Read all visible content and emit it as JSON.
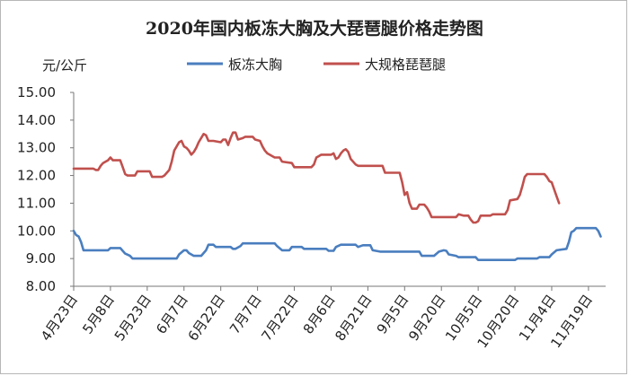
{
  "chart_data": {
    "type": "line",
    "title": "2020年国内板冻大胸及大琵琶腿价格走势图",
    "ylabel": "元/公斤",
    "xlabel": "",
    "ylim": [
      8.0,
      15.0
    ],
    "y_ticks": [
      "8.00",
      "9.00",
      "10.00",
      "11.00",
      "12.00",
      "13.00",
      "14.00",
      "15.00"
    ],
    "x_tick_labels": [
      "4月23日",
      "5月8日",
      "5月23日",
      "6月7日",
      "6月22日",
      "7月7日",
      "7月22日",
      "8月6日",
      "8月21日",
      "9月5日",
      "9月20日",
      "10月5日",
      "10月20日",
      "11月4日",
      "11月19日"
    ],
    "x_tick_days": [
      0,
      15,
      30,
      45,
      60,
      75,
      90,
      105,
      120,
      135,
      150,
      165,
      180,
      195,
      210
    ],
    "legend_position": "top",
    "grid": false,
    "series": [
      {
        "name": "板冻大胸",
        "color": "#4a7ebf",
        "points": [
          [
            0,
            10.0
          ],
          [
            1,
            9.85
          ],
          [
            2,
            9.8
          ],
          [
            3,
            9.6
          ],
          [
            4,
            9.3
          ],
          [
            8,
            9.3
          ],
          [
            14,
            9.3
          ],
          [
            15,
            9.38
          ],
          [
            19,
            9.38
          ],
          [
            21,
            9.18
          ],
          [
            23,
            9.1
          ],
          [
            24,
            9.0
          ],
          [
            30,
            9.0
          ],
          [
            35,
            9.0
          ],
          [
            42,
            9.0
          ],
          [
            43,
            9.15
          ],
          [
            45,
            9.3
          ],
          [
            46,
            9.3
          ],
          [
            47,
            9.2
          ],
          [
            49,
            9.1
          ],
          [
            52,
            9.1
          ],
          [
            54,
            9.3
          ],
          [
            55,
            9.5
          ],
          [
            57,
            9.5
          ],
          [
            58,
            9.42
          ],
          [
            64,
            9.42
          ],
          [
            65,
            9.35
          ],
          [
            66,
            9.35
          ],
          [
            68,
            9.45
          ],
          [
            69,
            9.55
          ],
          [
            78,
            9.55
          ],
          [
            82,
            9.55
          ],
          [
            83,
            9.45
          ],
          [
            85,
            9.3
          ],
          [
            88,
            9.3
          ],
          [
            89,
            9.42
          ],
          [
            93,
            9.42
          ],
          [
            94,
            9.35
          ],
          [
            103,
            9.35
          ],
          [
            104,
            9.28
          ],
          [
            106,
            9.28
          ],
          [
            107,
            9.42
          ],
          [
            109,
            9.5
          ],
          [
            115,
            9.5
          ],
          [
            116,
            9.42
          ],
          [
            118,
            9.48
          ],
          [
            121,
            9.48
          ],
          [
            122,
            9.3
          ],
          [
            125,
            9.25
          ],
          [
            141,
            9.25
          ],
          [
            142,
            9.1
          ],
          [
            147,
            9.1
          ],
          [
            149,
            9.25
          ],
          [
            151,
            9.3
          ],
          [
            152,
            9.28
          ],
          [
            153,
            9.15
          ],
          [
            156,
            9.1
          ],
          [
            157,
            9.05
          ],
          [
            158,
            9.05
          ],
          [
            164,
            9.05
          ],
          [
            165,
            8.95
          ],
          [
            172,
            8.95
          ],
          [
            180,
            8.95
          ],
          [
            181,
            9.0
          ],
          [
            185,
            9.0
          ],
          [
            189,
            9.0
          ],
          [
            190,
            9.05
          ],
          [
            194,
            9.05
          ],
          [
            195,
            9.15
          ],
          [
            197,
            9.3
          ],
          [
            201,
            9.35
          ],
          [
            202,
            9.6
          ],
          [
            203,
            9.95
          ],
          [
            204,
            10.0
          ],
          [
            205,
            10.1
          ],
          [
            209,
            10.1
          ],
          [
            213,
            10.1
          ],
          [
            214,
            10.0
          ],
          [
            215,
            9.8
          ]
        ]
      },
      {
        "name": "大规格琵琶腿",
        "color": "#c0504d",
        "points": [
          [
            0,
            12.25
          ],
          [
            8,
            12.25
          ],
          [
            9,
            12.2
          ],
          [
            10,
            12.2
          ],
          [
            11,
            12.35
          ],
          [
            12,
            12.45
          ],
          [
            13,
            12.5
          ],
          [
            14,
            12.55
          ],
          [
            15,
            12.65
          ],
          [
            16,
            12.55
          ],
          [
            19,
            12.55
          ],
          [
            20,
            12.3
          ],
          [
            21,
            12.05
          ],
          [
            22,
            12.0
          ],
          [
            25,
            12.0
          ],
          [
            26,
            12.15
          ],
          [
            31,
            12.15
          ],
          [
            32,
            11.95
          ],
          [
            36,
            11.95
          ],
          [
            37,
            12.0
          ],
          [
            39,
            12.2
          ],
          [
            40,
            12.5
          ],
          [
            41,
            12.9
          ],
          [
            43,
            13.2
          ],
          [
            44,
            13.25
          ],
          [
            45,
            13.05
          ],
          [
            46,
            13.0
          ],
          [
            47,
            12.9
          ],
          [
            48,
            12.75
          ],
          [
            49,
            12.85
          ],
          [
            50,
            13.0
          ],
          [
            51,
            13.2
          ],
          [
            53,
            13.5
          ],
          [
            54,
            13.45
          ],
          [
            55,
            13.25
          ],
          [
            57,
            13.25
          ],
          [
            60,
            13.2
          ],
          [
            61,
            13.3
          ],
          [
            62,
            13.3
          ],
          [
            63,
            13.1
          ],
          [
            64,
            13.35
          ],
          [
            65,
            13.55
          ],
          [
            66,
            13.55
          ],
          [
            67,
            13.3
          ],
          [
            69,
            13.35
          ],
          [
            70,
            13.4
          ],
          [
            73,
            13.4
          ],
          [
            74,
            13.3
          ],
          [
            76,
            13.25
          ],
          [
            77,
            13.05
          ],
          [
            78,
            12.9
          ],
          [
            79,
            12.8
          ],
          [
            81,
            12.7
          ],
          [
            82,
            12.65
          ],
          [
            84,
            12.65
          ],
          [
            85,
            12.5
          ],
          [
            89,
            12.45
          ],
          [
            90,
            12.3
          ],
          [
            97,
            12.3
          ],
          [
            98,
            12.4
          ],
          [
            99,
            12.65
          ],
          [
            100,
            12.7
          ],
          [
            101,
            12.75
          ],
          [
            105,
            12.75
          ],
          [
            106,
            12.8
          ],
          [
            107,
            12.6
          ],
          [
            108,
            12.65
          ],
          [
            109,
            12.8
          ],
          [
            110,
            12.9
          ],
          [
            111,
            12.95
          ],
          [
            112,
            12.85
          ],
          [
            113,
            12.6
          ],
          [
            115,
            12.4
          ],
          [
            116,
            12.35
          ],
          [
            126,
            12.35
          ],
          [
            127,
            12.1
          ],
          [
            133,
            12.1
          ],
          [
            134,
            11.75
          ],
          [
            135,
            11.3
          ],
          [
            136,
            11.4
          ],
          [
            137,
            11.0
          ],
          [
            138,
            10.8
          ],
          [
            140,
            10.8
          ],
          [
            141,
            10.95
          ],
          [
            143,
            10.95
          ],
          [
            144,
            10.85
          ],
          [
            145,
            10.7
          ],
          [
            146,
            10.5
          ],
          [
            156,
            10.5
          ],
          [
            157,
            10.6
          ],
          [
            159,
            10.55
          ],
          [
            161,
            10.55
          ],
          [
            162,
            10.4
          ],
          [
            163,
            10.3
          ],
          [
            164,
            10.3
          ],
          [
            165,
            10.35
          ],
          [
            166,
            10.55
          ],
          [
            170,
            10.55
          ],
          [
            171,
            10.6
          ],
          [
            176,
            10.6
          ],
          [
            177,
            10.75
          ],
          [
            178,
            11.1
          ],
          [
            181,
            11.15
          ],
          [
            182,
            11.3
          ],
          [
            183,
            11.6
          ],
          [
            184,
            11.95
          ],
          [
            185,
            12.05
          ],
          [
            192,
            12.05
          ],
          [
            193,
            11.95
          ],
          [
            194,
            11.8
          ],
          [
            195,
            11.75
          ],
          [
            196,
            11.5
          ],
          [
            197,
            11.25
          ],
          [
            198,
            11.0
          ]
        ]
      }
    ]
  }
}
